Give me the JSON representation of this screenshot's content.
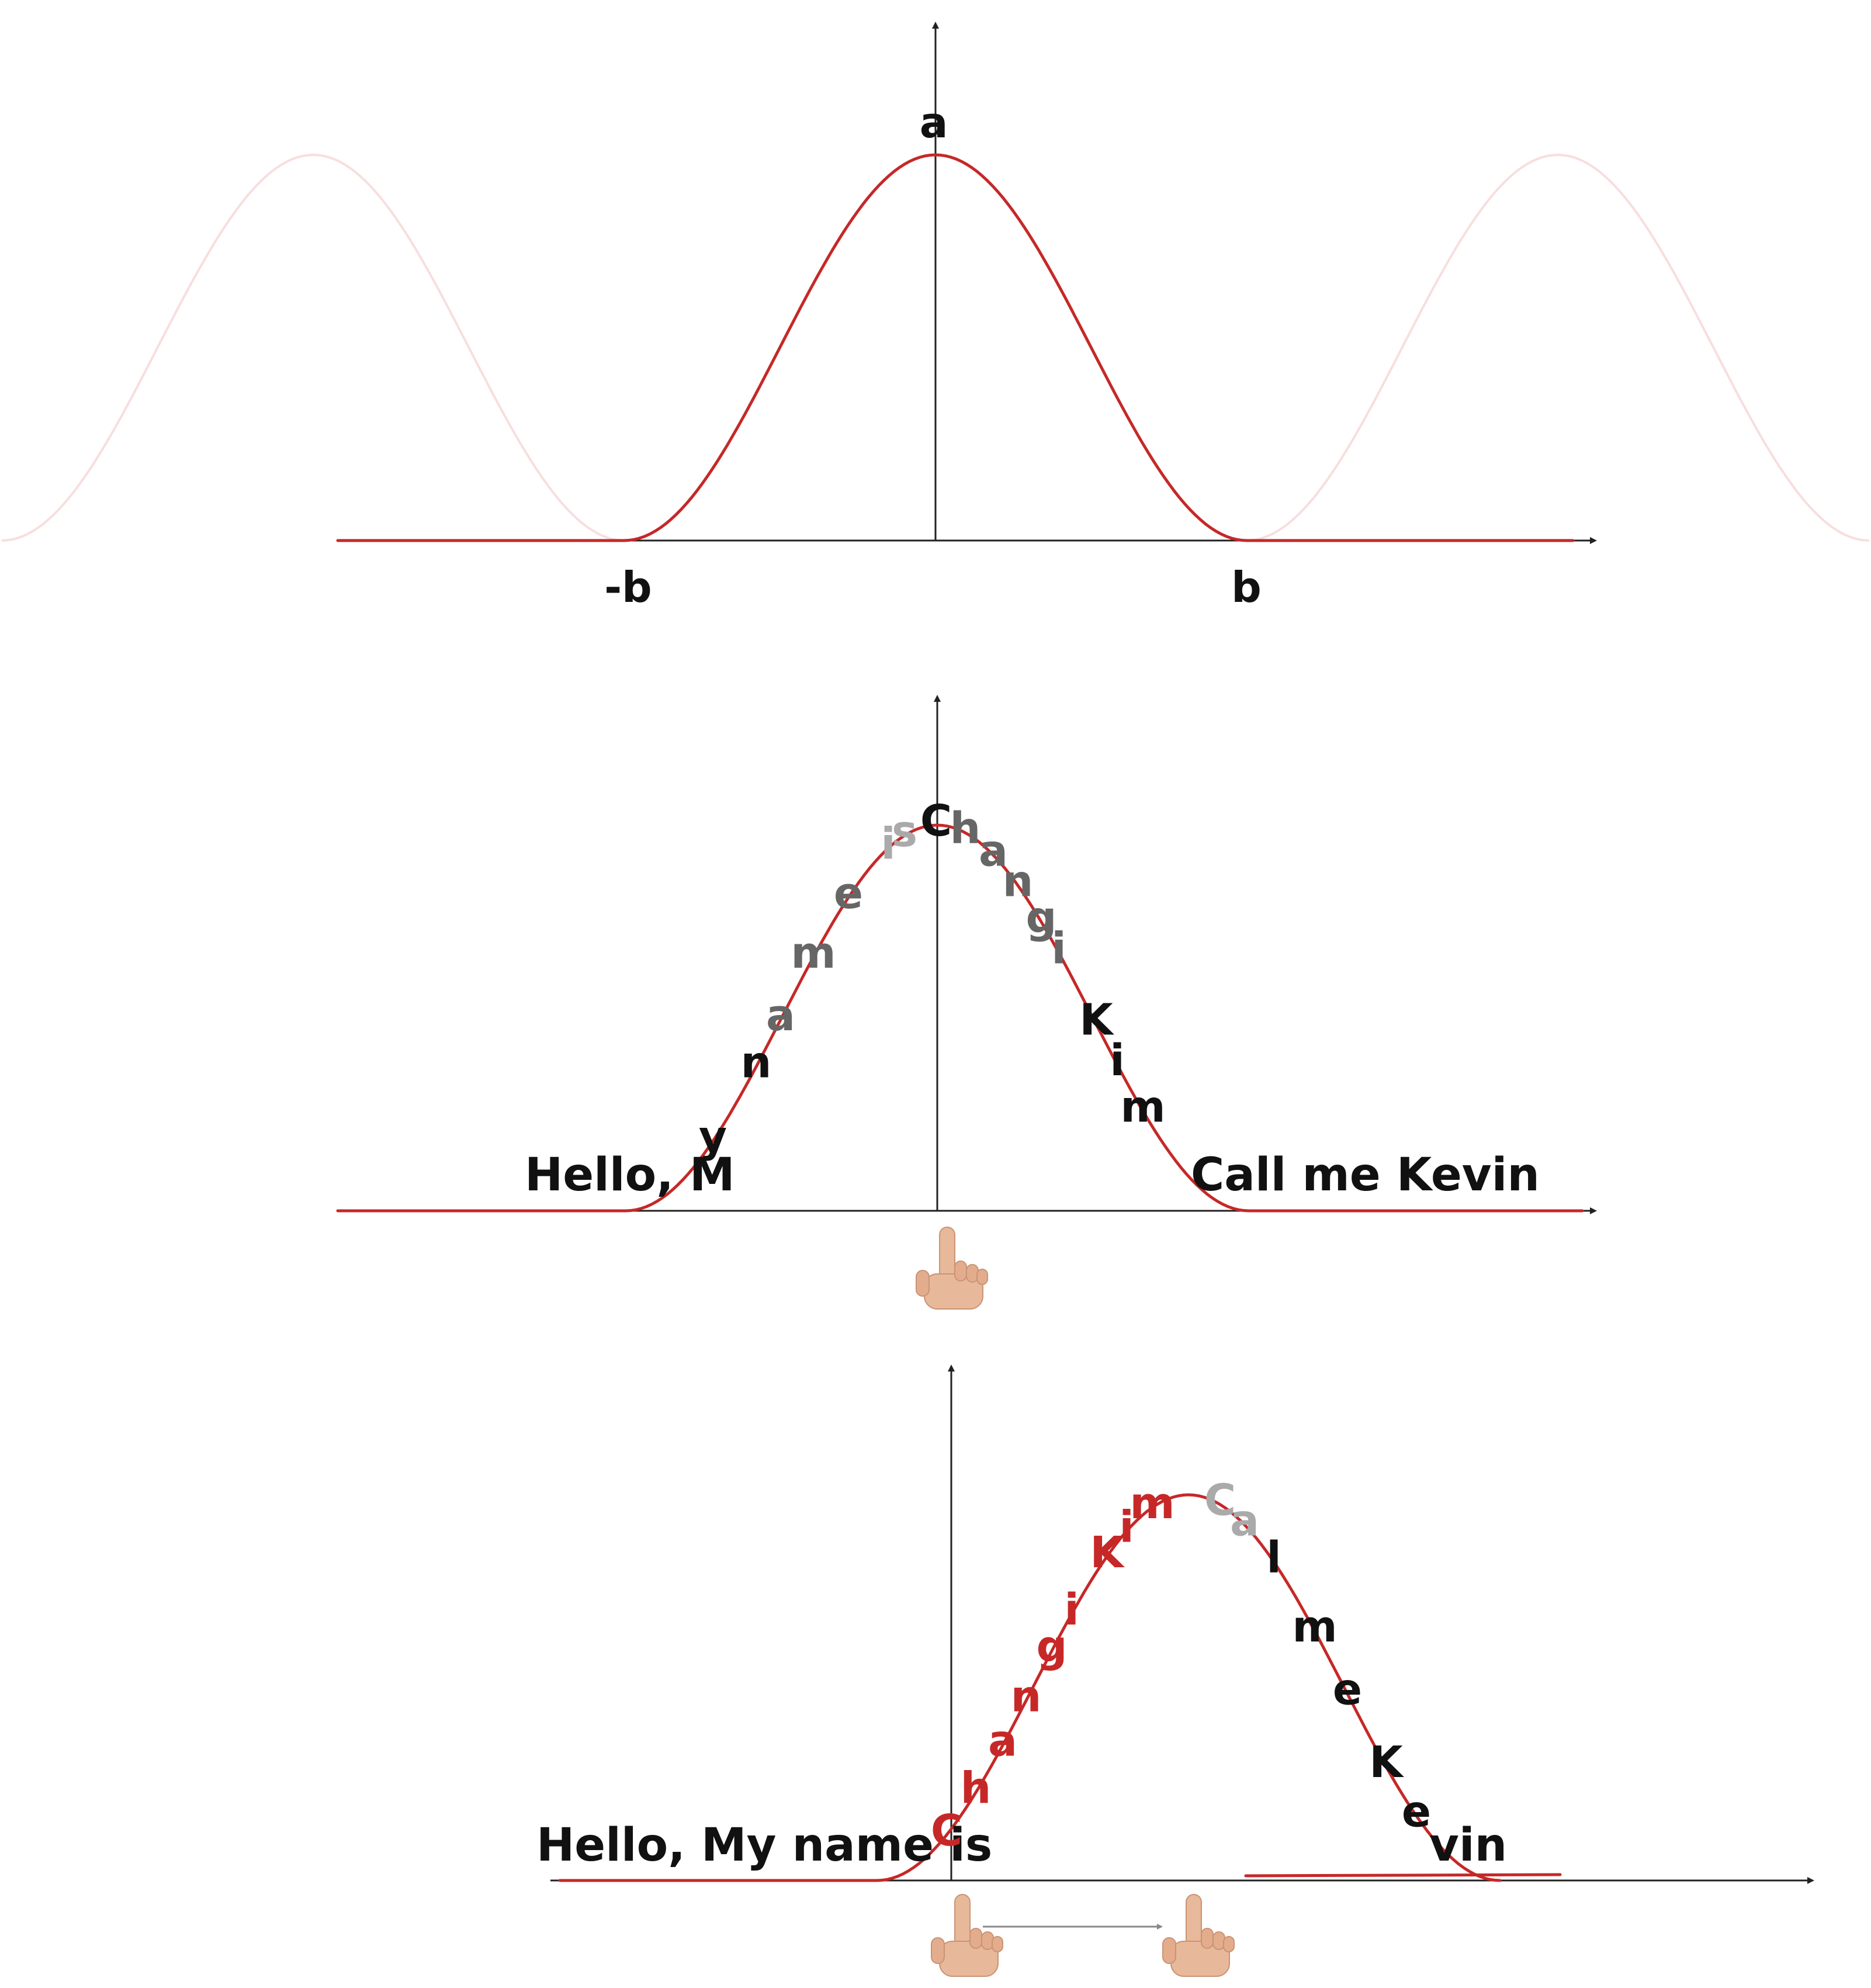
{
  "colors": {
    "curve": "#c62828",
    "ghost_curve": "#f8dede",
    "axis": "#222222",
    "text_dark": "#111111",
    "text_mid": "#666666",
    "text_light": "#aaaaaa",
    "highlight": "#c62828",
    "hand": "#e8b89a"
  },
  "panel1": {
    "label_a": "a",
    "label_neg_b": "-b",
    "label_b": "b"
  },
  "panel2": {
    "left_text": "Hello, M",
    "right_text": "Call me Kevin",
    "curve_glyphs": [
      "y",
      "n",
      "a",
      "m",
      "e",
      "i",
      "s",
      "C",
      "h",
      "a",
      "n",
      "g",
      "i",
      "K",
      "i",
      "m"
    ],
    "icon": "hand-pointer-icon"
  },
  "panel3": {
    "left_text": "Hello, My name is",
    "right_text": "vin",
    "curve_glyphs": [
      "C",
      "h",
      "a",
      "n",
      "g",
      "i",
      "K",
      "i",
      "m",
      "C",
      "a",
      "l",
      "m",
      "e",
      "K",
      "e"
    ],
    "icons": [
      "hand-pointer-icon",
      "arrow-right-icon",
      "hand-pointer-icon"
    ]
  }
}
